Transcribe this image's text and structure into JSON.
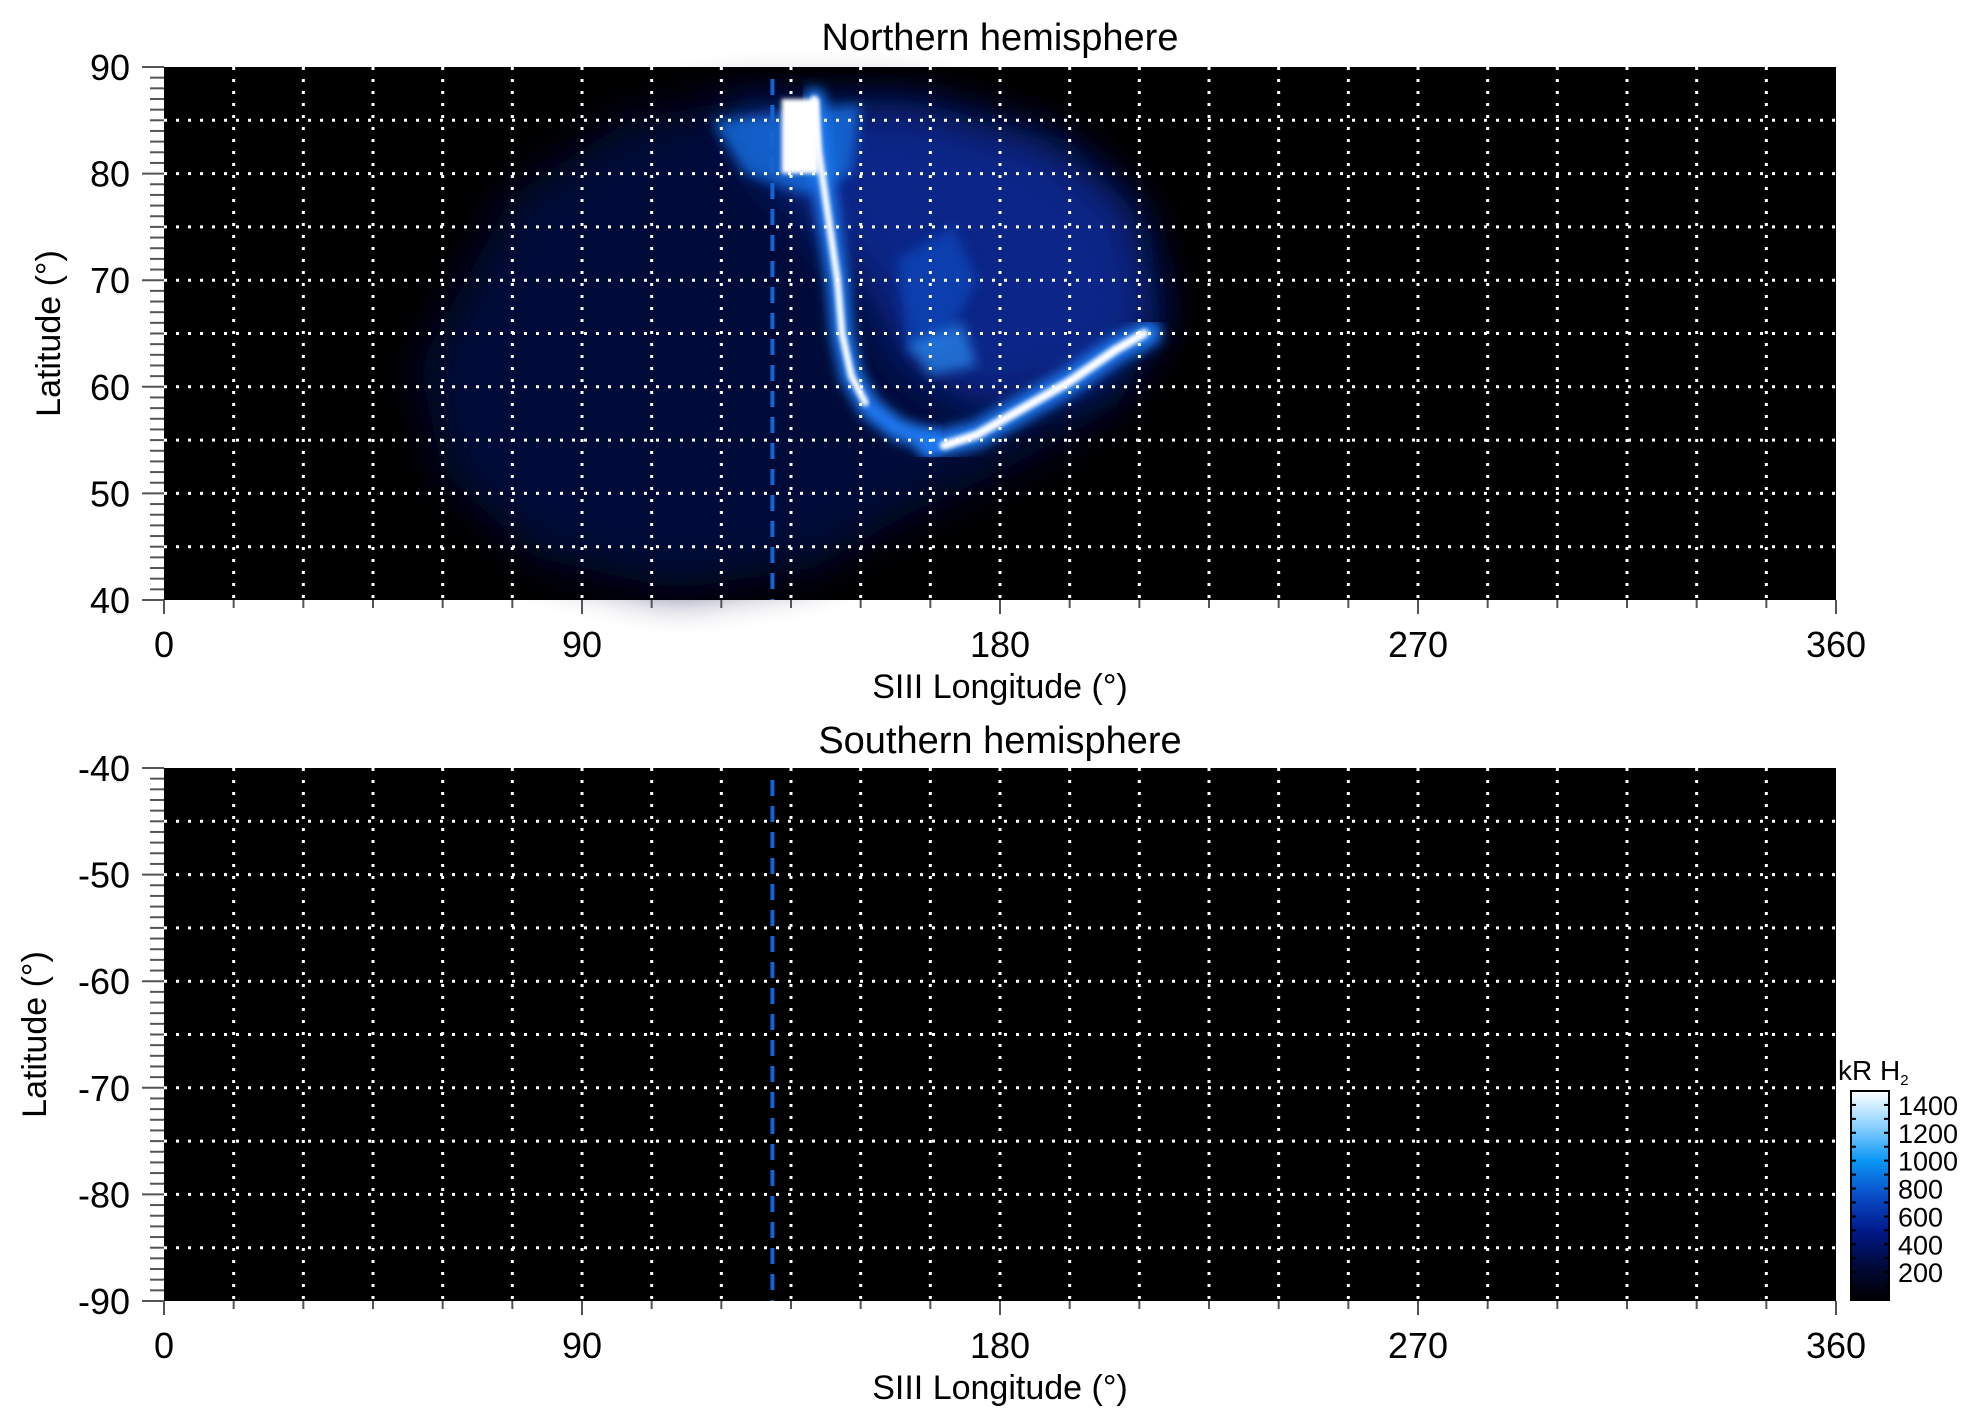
{
  "chart_data": [
    {
      "type": "heatmap",
      "title": "Northern hemisphere",
      "xlabel": "SIII Longitude (°)",
      "ylabel": "Latitude (°)",
      "xlim": [
        0,
        360
      ],
      "ylim": [
        40,
        90
      ],
      "xticks": [
        "0",
        "90",
        "180",
        "270",
        "360"
      ],
      "yticks": [
        "40",
        "50",
        "60",
        "70",
        "80",
        "90"
      ],
      "grid": true,
      "grid_spacing": {
        "longitude": 15,
        "latitude": 5
      },
      "reference_line": {
        "longitude": 131,
        "color": "#1464d2",
        "style": "dashed"
      },
      "content": "auroral emission: main oval from ~138° lon at 87° lat curving to ~150° at 57°, bright arc from ~168°/54° to ~212°/65°"
    },
    {
      "type": "heatmap",
      "title": "Southern hemisphere",
      "xlabel": "SIII Longitude (°)",
      "ylabel": "Latitude (°)",
      "xlim": [
        0,
        360
      ],
      "ylim": [
        -90,
        -40
      ],
      "xticks": [
        "0",
        "90",
        "180",
        "270",
        "360"
      ],
      "yticks": [
        "-40",
        "-50",
        "-60",
        "-70",
        "-80",
        "-90"
      ],
      "grid": true,
      "grid_spacing": {
        "longitude": 15,
        "latitude": 5
      },
      "reference_line": {
        "longitude": 131,
        "color": "#1464d2",
        "style": "dashed"
      }
    }
  ],
  "colorbar": {
    "label": "kR H",
    "label_subscript": "2",
    "range": [
      0,
      1500
    ],
    "ticks": [
      "200",
      "400",
      "600",
      "800",
      "1000",
      "1200",
      "1400"
    ],
    "colors": [
      "#000000",
      "#000a3c",
      "#001a8c",
      "#0a4cc8",
      "#0a96f5",
      "#8cd2ff",
      "#ffffff"
    ]
  }
}
